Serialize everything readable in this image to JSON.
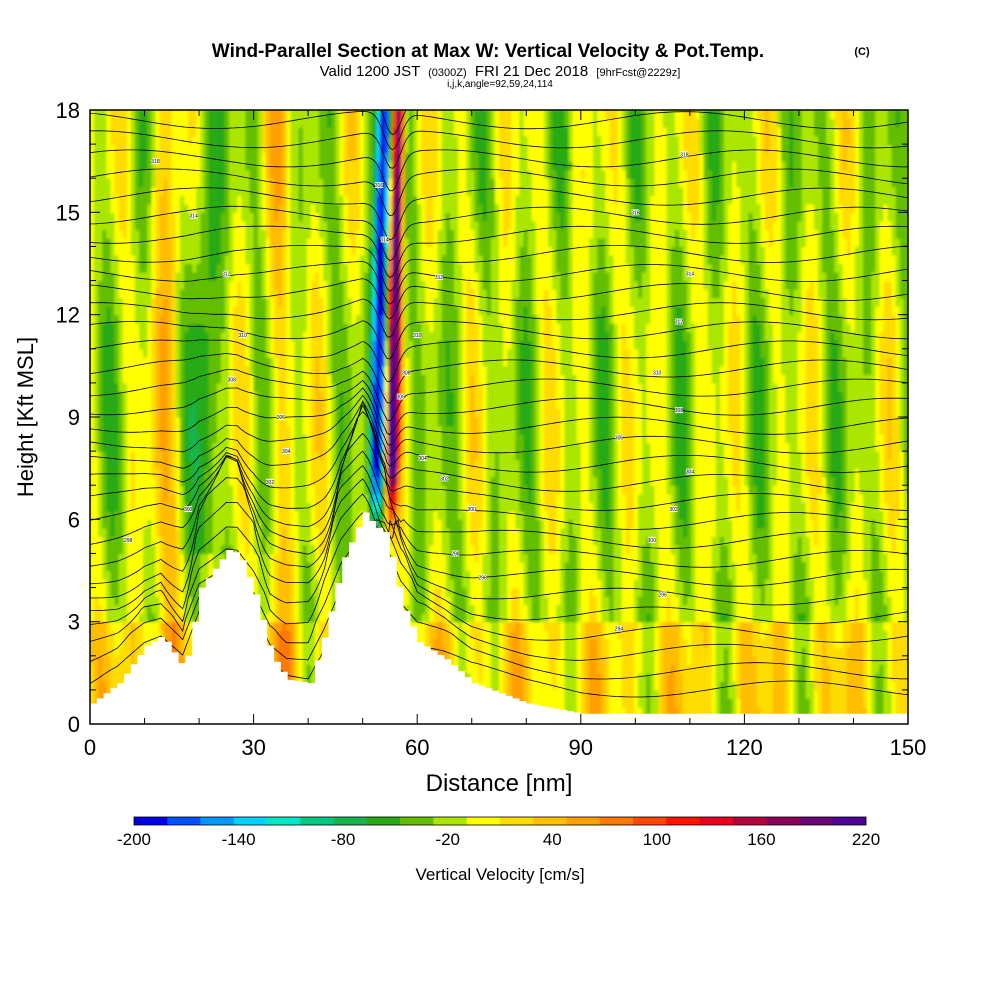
{
  "chart_data": {
    "type": "heatmap",
    "title": "Wind-Parallel Section at Max W: Vertical Velocity & Pot.Temp.",
    "title_mark": "(C)",
    "subtitle": {
      "valid_prefix": "Valid 1200 JST",
      "utc": "(0300Z)",
      "date": "FRI 21 Dec 2018",
      "forecast": "[9hrFcst@2229z]"
    },
    "indices": "i,j,k,angle=92,59,24,114",
    "xlabel": "Distance [nm]",
    "ylabel": "Height [Kft MSL]",
    "xlim": [
      0,
      150
    ],
    "ylim": [
      0,
      18
    ],
    "x_ticks": [
      0,
      30,
      60,
      90,
      120,
      150
    ],
    "y_ticks": [
      0,
      3,
      6,
      9,
      12,
      15,
      18
    ],
    "colorbar": {
      "label": "Vertical Velocity [cm/s]",
      "tick_labels": [
        -200,
        -140,
        -80,
        -20,
        40,
        100,
        160,
        220
      ],
      "colors": [
        "#0000e6",
        "#0050ff",
        "#0096ff",
        "#00d2ff",
        "#00e6c8",
        "#00c880",
        "#14b44a",
        "#28aa14",
        "#64be00",
        "#aae600",
        "#ffff00",
        "#ffdc00",
        "#ffbe00",
        "#ffa000",
        "#ff7800",
        "#ff4600",
        "#ff1400",
        "#e6001e",
        "#b4003c",
        "#8c005a",
        "#6e0078",
        "#500096"
      ]
    },
    "terrain_kft": {
      "x": [
        0,
        5,
        10,
        13,
        17,
        20,
        25,
        27,
        30,
        33,
        36,
        40,
        43,
        46,
        50,
        52,
        54,
        57,
        60,
        65,
        70,
        80,
        90,
        95,
        100,
        110,
        140,
        150
      ],
      "y": [
        0.6,
        1.2,
        2.3,
        2.6,
        1.6,
        4.0,
        5.1,
        5.0,
        3.8,
        2.0,
        1.3,
        1.2,
        2.8,
        4.8,
        6.2,
        5.8,
        5.6,
        3.5,
        2.4,
        1.9,
        1.2,
        0.6,
        0.3,
        0.3,
        0.3,
        0.3,
        0.3,
        0.3
      ]
    },
    "theta_contour_labels": [
      {
        "x": 12,
        "y": 16.5,
        "text": "318"
      },
      {
        "x": 19,
        "y": 14.9,
        "text": "314"
      },
      {
        "x": 25,
        "y": 13.2,
        "text": "312"
      },
      {
        "x": 28,
        "y": 11.4,
        "text": "310"
      },
      {
        "x": 26,
        "y": 10.1,
        "text": "308"
      },
      {
        "x": 35,
        "y": 9.0,
        "text": "306"
      },
      {
        "x": 36,
        "y": 8.0,
        "text": "304"
      },
      {
        "x": 33,
        "y": 7.1,
        "text": "302"
      },
      {
        "x": 18,
        "y": 6.3,
        "text": "300"
      },
      {
        "x": 7,
        "y": 5.4,
        "text": "298"
      },
      {
        "x": 53,
        "y": 15.8,
        "text": "316"
      },
      {
        "x": 54,
        "y": 14.2,
        "text": "314"
      },
      {
        "x": 64,
        "y": 13.1,
        "text": "312"
      },
      {
        "x": 60,
        "y": 11.4,
        "text": "310"
      },
      {
        "x": 58,
        "y": 10.3,
        "text": "308"
      },
      {
        "x": 57,
        "y": 9.6,
        "text": "306"
      },
      {
        "x": 61,
        "y": 7.8,
        "text": "304"
      },
      {
        "x": 65,
        "y": 7.2,
        "text": "302"
      },
      {
        "x": 70,
        "y": 6.3,
        "text": "300"
      },
      {
        "x": 67,
        "y": 5.0,
        "text": "298"
      },
      {
        "x": 72,
        "y": 4.3,
        "text": "296"
      },
      {
        "x": 109,
        "y": 16.7,
        "text": "318"
      },
      {
        "x": 100,
        "y": 15.0,
        "text": "316"
      },
      {
        "x": 110,
        "y": 13.2,
        "text": "314"
      },
      {
        "x": 108,
        "y": 11.8,
        "text": "312"
      },
      {
        "x": 104,
        "y": 10.3,
        "text": "310"
      },
      {
        "x": 108,
        "y": 9.2,
        "text": "308"
      },
      {
        "x": 97,
        "y": 8.4,
        "text": "306"
      },
      {
        "x": 110,
        "y": 7.4,
        "text": "304"
      },
      {
        "x": 107,
        "y": 6.3,
        "text": "302"
      },
      {
        "x": 103,
        "y": 5.4,
        "text": "300"
      },
      {
        "x": 105,
        "y": 3.8,
        "text": "296"
      },
      {
        "x": 97,
        "y": 2.8,
        "text": "294"
      }
    ]
  }
}
